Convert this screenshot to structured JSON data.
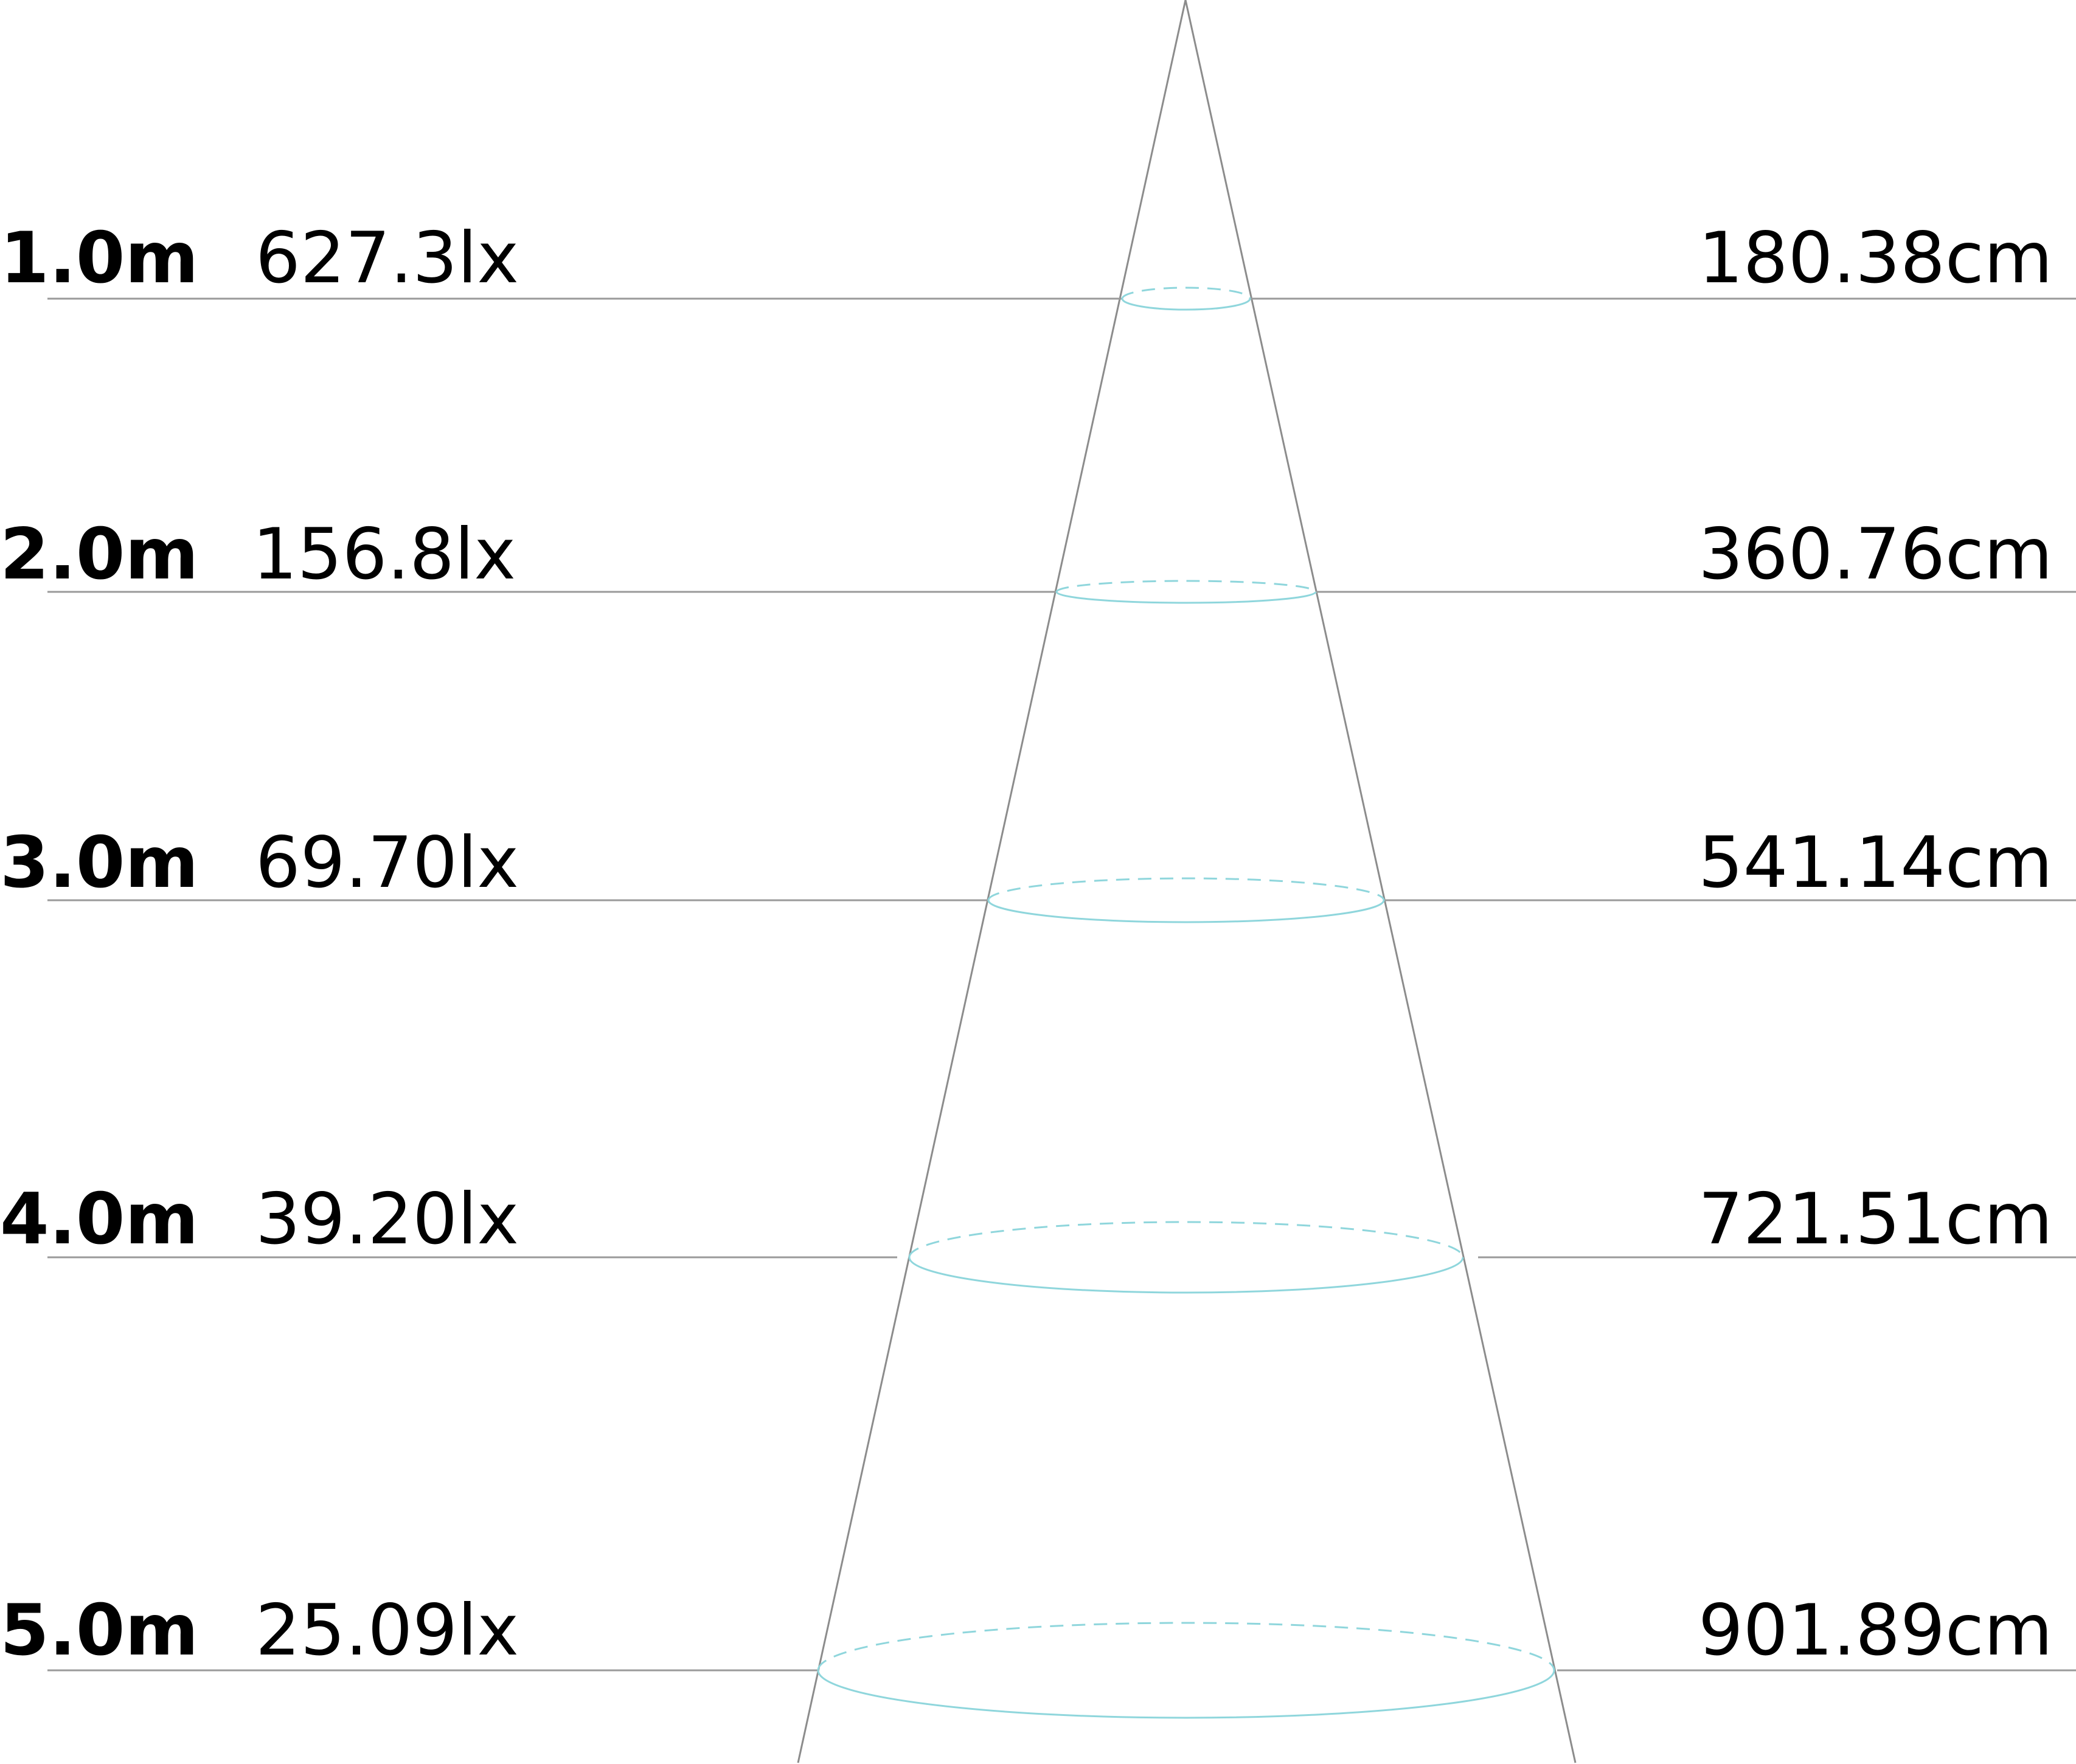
{
  "colors": {
    "background": "#ffffff",
    "text": "#000000",
    "guide_line": "#9a9a9a",
    "beam_edge": "#8c8c8c",
    "beam_ellipse": "#8fd6dc"
  },
  "rows": [
    {
      "distance": "1.0m",
      "illuminance": "627.3lx",
      "diameter": "180.38cm"
    },
    {
      "distance": "2.0m",
      "illuminance": "156.8lx",
      "diameter": "360.76cm"
    },
    {
      "distance": "3.0m",
      "illuminance": "69.70lx",
      "diameter": "541.14cm"
    },
    {
      "distance": "4.0m",
      "illuminance": "39.20lx",
      "diameter": "721.51cm"
    },
    {
      "distance": "5.0m",
      "illuminance": "25.09lx",
      "diameter": "901.89cm"
    }
  ]
}
